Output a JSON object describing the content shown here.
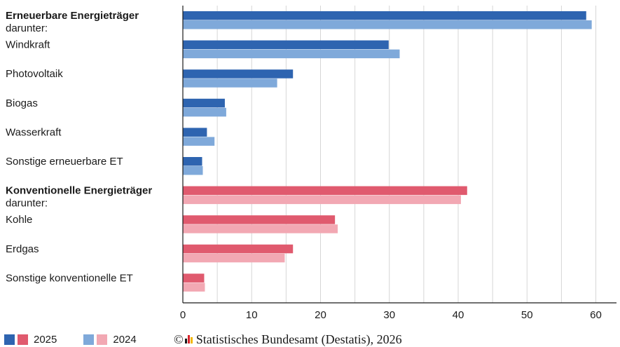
{
  "chart_data": {
    "type": "bar",
    "orientation": "horizontal",
    "categories": [
      {
        "label": "Erneuerbare Energieträger",
        "sublabel": "darunter:",
        "bold": true,
        "group": "renewable"
      },
      {
        "label": "Windkraft",
        "sublabel": "",
        "bold": false,
        "group": "renewable"
      },
      {
        "label": "Photovoltaik",
        "sublabel": "",
        "bold": false,
        "group": "renewable"
      },
      {
        "label": "Biogas",
        "sublabel": "",
        "bold": false,
        "group": "renewable"
      },
      {
        "label": "Wasserkraft",
        "sublabel": "",
        "bold": false,
        "group": "renewable"
      },
      {
        "label": "Sonstige erneuerbare ET",
        "sublabel": "",
        "bold": false,
        "group": "renewable"
      },
      {
        "label": "Konventionelle Energieträger",
        "sublabel": "darunter:",
        "bold": true,
        "group": "conventional"
      },
      {
        "label": "Kohle",
        "sublabel": "",
        "bold": false,
        "group": "conventional"
      },
      {
        "label": "Erdgas",
        "sublabel": "",
        "bold": false,
        "group": "conventional"
      },
      {
        "label": "Sonstige konventionelle ET",
        "sublabel": "",
        "bold": false,
        "group": "conventional"
      }
    ],
    "series": [
      {
        "name": "2025",
        "values": [
          58.6,
          29.9,
          16.0,
          6.1,
          3.5,
          2.8,
          41.3,
          22.1,
          16.0,
          3.1
        ]
      },
      {
        "name": "2024",
        "values": [
          59.4,
          31.5,
          13.7,
          6.3,
          4.6,
          2.9,
          40.4,
          22.5,
          14.8,
          3.2
        ]
      }
    ],
    "colors": {
      "renewable": {
        "2025": "#2e64b0",
        "2024": "#7fa9da"
      },
      "conventional": {
        "2025": "#e05a6e",
        "2024": "#f2a8b3"
      }
    },
    "xlim": [
      0,
      63
    ],
    "xticks": [
      0,
      10,
      20,
      30,
      40,
      50,
      60
    ],
    "grid": true,
    "legend": {
      "position": "bottom-left",
      "items": [
        {
          "label": "2025",
          "colors": [
            "#2e64b0",
            "#e05a6e"
          ]
        },
        {
          "label": "2024",
          "colors": [
            "#7fa9da",
            "#f2a8b3"
          ]
        }
      ]
    }
  },
  "credit": {
    "symbol": "©",
    "text": "Statistisches Bundesamt (Destatis), 2026"
  }
}
